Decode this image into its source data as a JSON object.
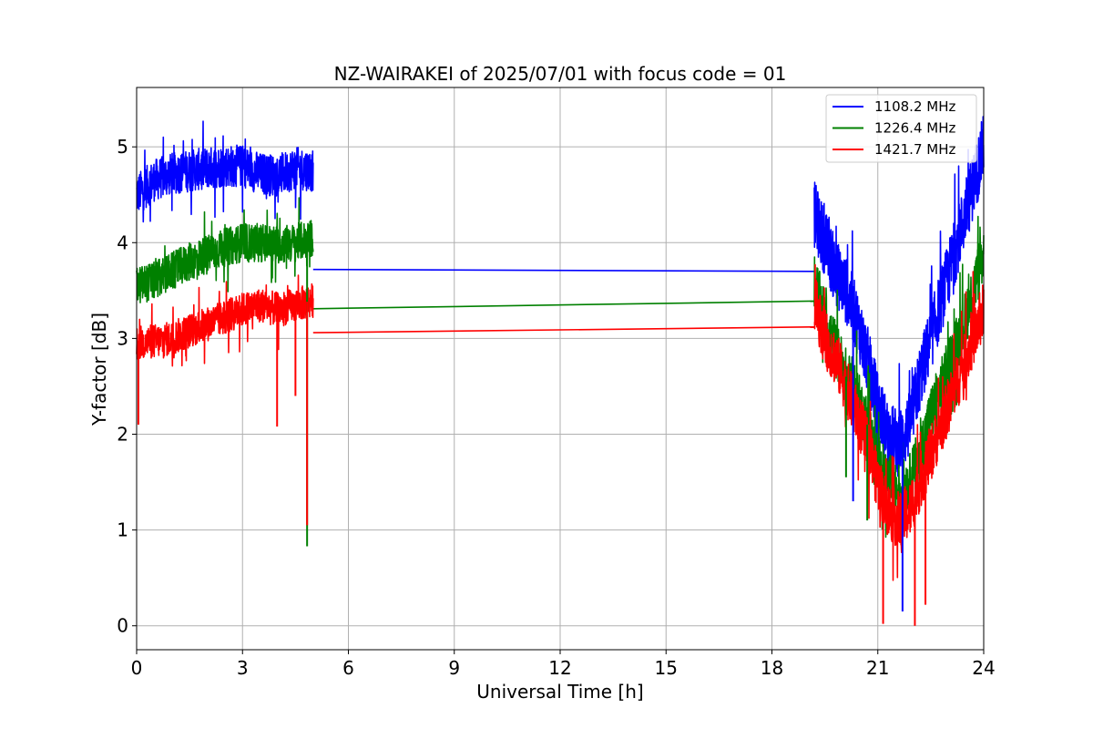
{
  "chart_data": {
    "type": "line",
    "title": "NZ-WAIRAKEI of 2025/07/01 with focus code = 01",
    "xlabel": "Universal Time [h]",
    "ylabel": "Y-factor [dB]",
    "xlim": [
      0,
      24
    ],
    "ylim": [
      -0.25,
      5.62
    ],
    "xticks": [
      0,
      3,
      6,
      9,
      12,
      15,
      18,
      21,
      24
    ],
    "yticks": [
      0,
      1,
      2,
      3,
      4,
      5
    ],
    "grid": true,
    "legend_position": "top-right",
    "series": [
      {
        "name": "1108.2 MHz",
        "color": "#0000ff",
        "segments": [
          {
            "x": [
              0.0,
              0.5,
              1.0,
              1.5,
              2.0,
              2.5,
              3.0,
              3.5,
              4.0,
              4.5,
              5.0
            ],
            "y": [
              4.5,
              4.65,
              4.72,
              4.75,
              4.78,
              4.8,
              4.8,
              4.72,
              4.7,
              4.78,
              4.75
            ],
            "spread": 0.22
          },
          {
            "x": [
              5.0,
              19.2
            ],
            "y": [
              3.72,
              3.7
            ],
            "spread": 0
          },
          {
            "x": [
              19.2,
              19.5,
              19.8,
              20.1,
              20.4,
              20.7,
              21.0,
              21.3,
              21.6,
              21.9,
              22.2,
              22.5,
              22.8,
              23.1,
              23.4,
              23.7,
              24.0
            ],
            "y": [
              4.3,
              4.0,
              3.7,
              3.5,
              3.2,
              2.8,
              2.3,
              2.0,
              1.9,
              2.1,
              2.6,
              3.0,
              3.4,
              3.8,
              4.2,
              4.6,
              5.0
            ],
            "spread": 0.35
          }
        ]
      },
      {
        "name": "1226.4 MHz",
        "color": "#008000",
        "segments": [
          {
            "x": [
              0.0,
              0.5,
              1.0,
              1.5,
              2.0,
              2.5,
              3.0,
              3.5,
              4.0,
              4.5,
              5.0
            ],
            "y": [
              3.55,
              3.6,
              3.7,
              3.8,
              3.88,
              3.95,
              4.0,
              4.0,
              3.98,
              4.0,
              4.05
            ],
            "spread": 0.2
          },
          {
            "x": [
              5.0,
              19.2
            ],
            "y": [
              3.31,
              3.39
            ],
            "spread": 0
          },
          {
            "x": [
              19.2,
              19.5,
              19.8,
              20.1,
              20.4,
              20.7,
              21.0,
              21.3,
              21.6,
              21.9,
              22.2,
              22.5,
              22.8,
              23.1,
              23.4,
              23.7,
              24.0
            ],
            "y": [
              3.6,
              3.2,
              2.9,
              2.6,
              2.4,
              2.1,
              1.7,
              1.5,
              1.4,
              1.5,
              1.8,
              2.2,
              2.5,
              2.8,
              3.1,
              3.5,
              3.9
            ],
            "spread": 0.3
          }
        ]
      },
      {
        "name": "1421.7 MHz",
        "color": "#ff0000",
        "segments": [
          {
            "x": [
              0.0,
              0.5,
              1.0,
              1.5,
              2.0,
              2.5,
              3.0,
              3.5,
              4.0,
              4.5,
              5.0
            ],
            "y": [
              2.95,
              2.97,
              3.0,
              3.08,
              3.15,
              3.22,
              3.3,
              3.35,
              3.3,
              3.35,
              3.4
            ],
            "spread": 0.18
          },
          {
            "x": [
              5.0,
              19.2
            ],
            "y": [
              3.06,
              3.12
            ],
            "spread": 0
          },
          {
            "x": [
              19.2,
              19.5,
              19.8,
              20.1,
              20.4,
              20.7,
              21.0,
              21.3,
              21.6,
              21.9,
              22.2,
              22.5,
              22.8,
              23.1,
              23.4,
              23.7,
              24.0
            ],
            "y": [
              3.4,
              3.0,
              2.8,
              2.5,
              2.2,
              1.9,
              1.5,
              1.2,
              1.1,
              1.2,
              1.5,
              1.8,
              2.1,
              2.4,
              2.7,
              3.0,
              3.3
            ],
            "spread": 0.3
          }
        ]
      }
    ],
    "spikes": [
      {
        "series": 1,
        "x": 4.83,
        "y": 0.83
      },
      {
        "series": 2,
        "x": 4.83,
        "y": 1.05
      },
      {
        "series": 2,
        "x": 3.98,
        "y": 2.08
      },
      {
        "series": 2,
        "x": 4.5,
        "y": 2.4
      },
      {
        "series": 2,
        "x": 0.05,
        "y": 2.1
      },
      {
        "series": 0,
        "x": 20.3,
        "y": 1.3
      },
      {
        "series": 1,
        "x": 20.1,
        "y": 1.55
      },
      {
        "series": 1,
        "x": 20.7,
        "y": 1.1
      },
      {
        "series": 2,
        "x": 21.15,
        "y": 0.02
      },
      {
        "series": 0,
        "x": 21.7,
        "y": 0.15
      },
      {
        "series": 2,
        "x": 22.05,
        "y": 0.0
      },
      {
        "series": 2,
        "x": 22.35,
        "y": 0.22
      }
    ]
  }
}
